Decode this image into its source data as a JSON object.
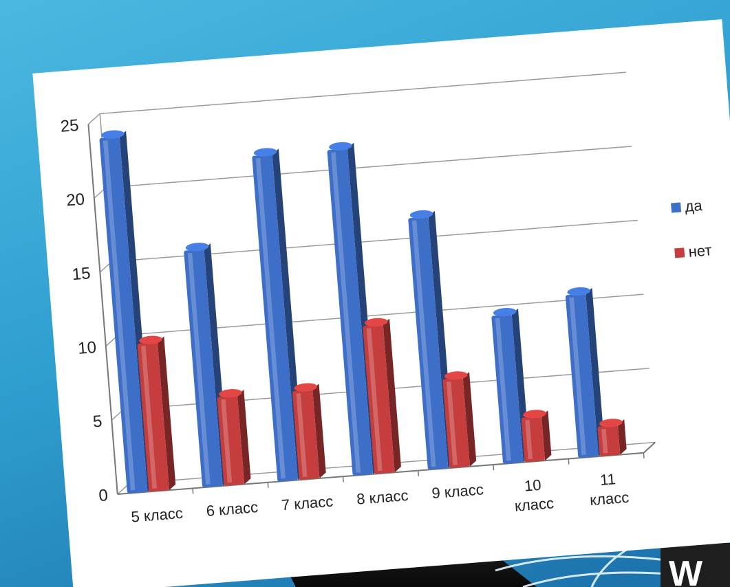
{
  "chart_data": {
    "type": "bar",
    "categories": [
      [
        "5 класс"
      ],
      [
        "6 класс"
      ],
      [
        "7 класс"
      ],
      [
        "8 класс"
      ],
      [
        "9 класс"
      ],
      [
        "10",
        "класс"
      ],
      [
        "11",
        "класс"
      ]
    ],
    "series": [
      {
        "name": "да",
        "values": [
          24,
          16,
          22,
          22,
          17,
          10,
          11
        ],
        "color": "#3d6fc9"
      },
      {
        "name": "нет",
        "values": [
          10,
          6,
          6,
          10,
          6,
          3,
          2
        ],
        "color": "#c63d3d"
      }
    ],
    "ylim": [
      0,
      25
    ],
    "yticks": [
      "0",
      "5",
      "10",
      "15",
      "20",
      "25"
    ],
    "grid": true,
    "legend_position": "right"
  }
}
